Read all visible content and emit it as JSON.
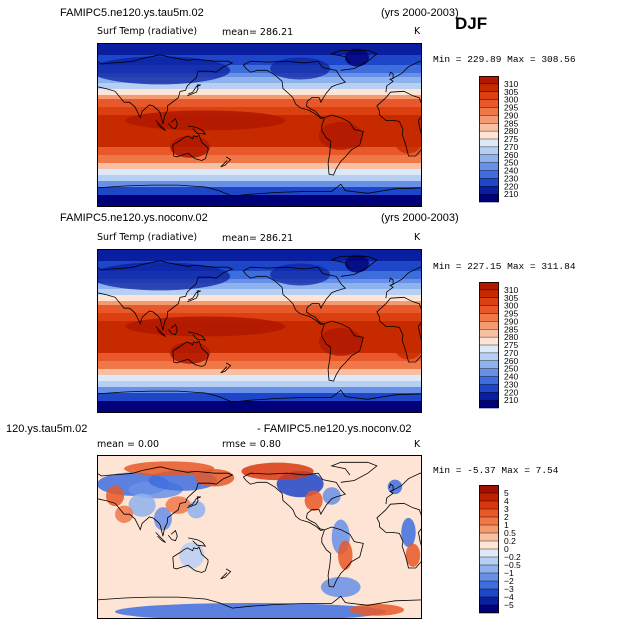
{
  "season": "DJF",
  "panels": [
    {
      "title": "FAMIPC5.ne120.ys.tau5m.02",
      "years": "(yrs 2000-2003)",
      "variable": "Surf Temp (radiative)",
      "mean": "mean= 286.21",
      "units": "K",
      "minmax": "Min = 229.89 Max = 308.56",
      "kind": "temp"
    },
    {
      "title": "FAMIPC5.ne120.ys.noconv.02",
      "years": "(yrs 2000-2003)",
      "variable": "Surf Temp (radiative)",
      "mean": "mean= 286.21",
      "units": "K",
      "minmax": "Min = 227.15 Max = 311.84",
      "kind": "temp"
    },
    {
      "title": "120.ys.tau5m.02",
      "title_right": "- FAMIPC5.ne120.ys.noconv.02",
      "mean": "mean =    0.00",
      "rmse": "rmse =    0.80",
      "units": "K",
      "minmax": "Min =  -5.37 Max =    7.54",
      "kind": "diff"
    }
  ],
  "chart_data": [
    {
      "type": "heatmap",
      "title": "FAMIPC5.ne120.ys.tau5m.02 Surf Temp (radiative) DJF (yrs 2000-2003)",
      "units": "K",
      "mean": 286.21,
      "min": 229.89,
      "max": 308.56,
      "colorbar_levels": [
        "310",
        "305",
        "300",
        "295",
        "290",
        "285",
        "280",
        "275",
        "270",
        "260",
        "250",
        "240",
        "230",
        "220",
        "210"
      ],
      "colors": [
        "#b01800",
        "#c82a00",
        "#dd4010",
        "#e8582a",
        "#f07848",
        "#f49a70",
        "#f8c0a2",
        "#fde4d4",
        "#dde8f8",
        "#b8cff4",
        "#8eb2ee",
        "#6890e6",
        "#3e6ede",
        "#1e46c8",
        "#0a1fa0",
        "#000078"
      ]
    },
    {
      "type": "heatmap",
      "title": "FAMIPC5.ne120.ys.noconv.02 Surf Temp (radiative) DJF (yrs 2000-2003)",
      "units": "K",
      "mean": 286.21,
      "min": 227.15,
      "max": 311.84,
      "colorbar_levels": [
        "310",
        "305",
        "300",
        "295",
        "290",
        "285",
        "280",
        "275",
        "270",
        "260",
        "250",
        "240",
        "230",
        "220",
        "210"
      ],
      "colors": [
        "#b01800",
        "#c82a00",
        "#dd4010",
        "#e8582a",
        "#f07848",
        "#f49a70",
        "#f8c0a2",
        "#fde4d4",
        "#dde8f8",
        "#b8cff4",
        "#8eb2ee",
        "#6890e6",
        "#3e6ede",
        "#1e46c8",
        "#0a1fa0",
        "#000078"
      ]
    },
    {
      "type": "heatmap",
      "title": "120.ys.tau5m.02 - FAMIPC5.ne120.ys.noconv.02",
      "units": "K",
      "mean": 0.0,
      "rmse": 0.8,
      "min": -5.37,
      "max": 7.54,
      "colorbar_levels": [
        "5",
        "4",
        "3",
        "2",
        "1",
        "0.5",
        "0.2",
        "0",
        "−0.2",
        "−0.5",
        "−1",
        "−2",
        "−3",
        "−4",
        "−5"
      ],
      "colors": [
        "#a01000",
        "#c02000",
        "#d83810",
        "#e85828",
        "#f07848",
        "#f49a70",
        "#f8c0a2",
        "#fde4d4",
        "#dde8f8",
        "#b8cff4",
        "#8eb2ee",
        "#6890e6",
        "#3e6ede",
        "#1e46c8",
        "#0a1fa0",
        "#000078"
      ]
    }
  ]
}
